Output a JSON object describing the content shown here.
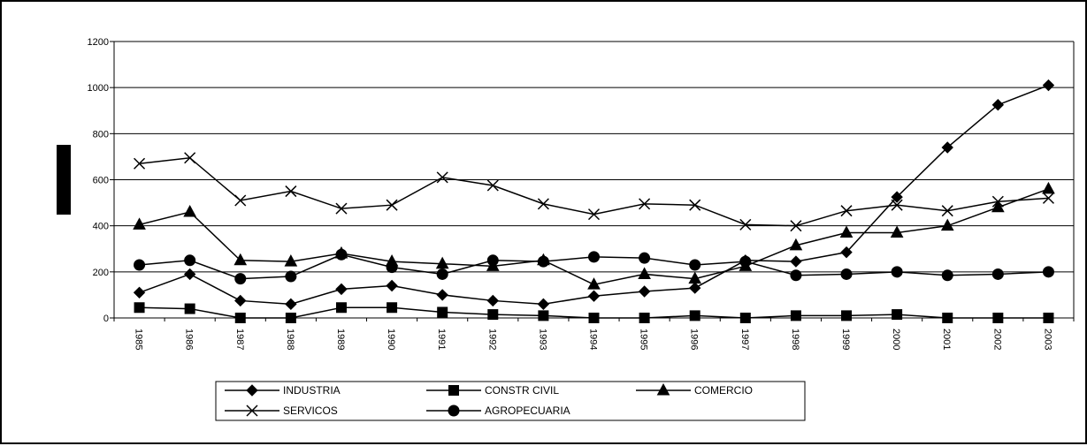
{
  "chart_data": {
    "type": "line",
    "title": "",
    "xlabel": "",
    "ylabel": "",
    "ylim": [
      0,
      1200
    ],
    "yticks": [
      0,
      200,
      400,
      600,
      800,
      1000,
      1200
    ],
    "grid": true,
    "legend_position": "bottom",
    "categories": [
      "1985",
      "1986",
      "1987",
      "1988",
      "1989",
      "1990",
      "1991",
      "1992",
      "1993",
      "1994",
      "1995",
      "1996",
      "1997",
      "1998",
      "1999",
      "2000",
      "2001",
      "2002",
      "2003"
    ],
    "series": [
      {
        "name": "INDUSTRIA",
        "marker": "diamond",
        "values": [
          110,
          190,
          75,
          60,
          125,
          140,
          100,
          75,
          60,
          95,
          115,
          130,
          250,
          245,
          285,
          525,
          740,
          925,
          1010
        ]
      },
      {
        "name": "CONSTR CIVIL",
        "marker": "square",
        "values": [
          45,
          40,
          0,
          0,
          45,
          45,
          25,
          15,
          10,
          0,
          0,
          10,
          0,
          10,
          10,
          15,
          0,
          0,
          0
        ]
      },
      {
        "name": "COMERCIO",
        "marker": "triangle",
        "values": [
          405,
          460,
          250,
          245,
          280,
          245,
          235,
          225,
          250,
          145,
          190,
          170,
          225,
          315,
          370,
          370,
          400,
          480,
          560
        ]
      },
      {
        "name": "SERVICOS",
        "marker": "x",
        "values": [
          670,
          695,
          510,
          550,
          475,
          490,
          610,
          575,
          495,
          450,
          495,
          490,
          405,
          400,
          465,
          490,
          465,
          505,
          520
        ]
      },
      {
        "name": "AGROPECUARIA",
        "marker": "circle",
        "values": [
          230,
          250,
          170,
          180,
          275,
          220,
          190,
          250,
          245,
          265,
          260,
          230,
          245,
          185,
          190,
          200,
          185,
          190,
          200
        ]
      }
    ]
  }
}
